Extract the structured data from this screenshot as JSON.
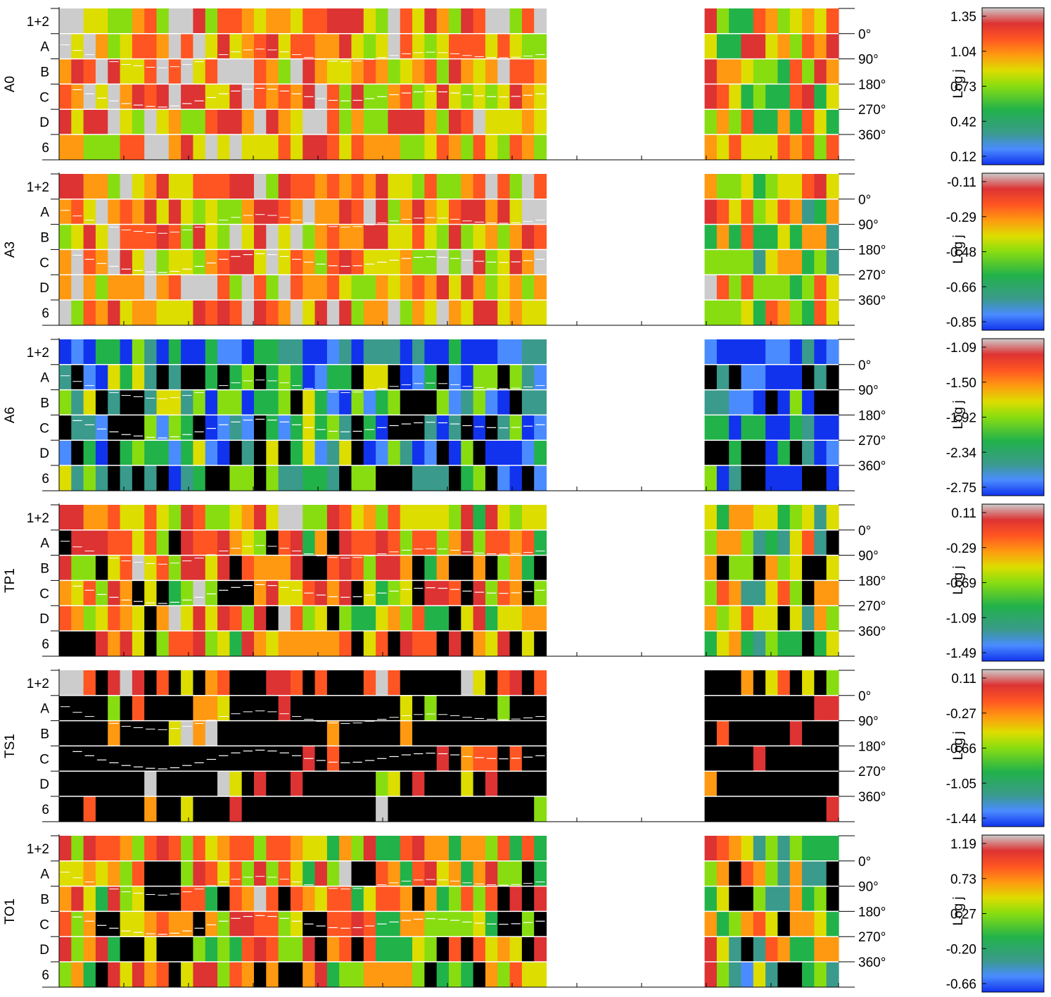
{
  "chart_data": {
    "type": "heatmap",
    "row_labels": [
      "1+2",
      "A",
      "B",
      "C",
      "D",
      "6"
    ],
    "angle_labels": [
      "0°",
      "90°",
      "180°",
      "270°",
      "360°"
    ],
    "colorbar_label": "Log j",
    "missing_color": "#000000",
    "gap_columns": [
      40,
      53
    ],
    "n_columns": 64,
    "colorscale": [
      "#1133ee",
      "#4a8cff",
      "#3a9a8c",
      "#22b24a",
      "#88dd11",
      "#dddd00",
      "#ff9911",
      "#ff5522",
      "#dd3333",
      "#cccccc"
    ],
    "panels": [
      {
        "name": "A0",
        "colorbar_ticks": [
          "1.35",
          "1.04",
          "0.73",
          "0.42",
          "0.12"
        ],
        "range": [
          0.12,
          1.35
        ],
        "level": 0.68,
        "missing": 0.0,
        "pitch_angle_curve": [
          180,
          200,
          215,
          230,
          240,
          250,
          255,
          260,
          262,
          258,
          250,
          240,
          228,
          215,
          205,
          198,
          195,
          198,
          205,
          215,
          225,
          232,
          238,
          240,
          238,
          232,
          225,
          218,
          212,
          208,
          206,
          208,
          212,
          218,
          222,
          225,
          226,
          224,
          220,
          215
        ]
      },
      {
        "name": "A3",
        "colorbar_ticks": [
          "-0.11",
          "-0.29",
          "-0.48",
          "-0.66",
          "-0.85"
        ],
        "range": [
          -0.85,
          -0.11
        ],
        "level": 0.66,
        "missing": 0.0,
        "pitch_angle_curve": [
          180,
          200,
          215,
          230,
          240,
          250,
          255,
          260,
          262,
          258,
          250,
          240,
          228,
          215,
          205,
          198,
          195,
          198,
          205,
          215,
          225,
          232,
          238,
          240,
          238,
          232,
          225,
          218,
          212,
          208,
          206,
          208,
          212,
          218,
          222,
          225,
          226,
          224,
          220,
          215
        ]
      },
      {
        "name": "A6",
        "colorbar_ticks": [
          "-1.09",
          "-1.50",
          "-1.92",
          "-2.34",
          "-2.75"
        ],
        "range": [
          -2.75,
          -1.09
        ],
        "level": 0.25,
        "missing": 0.3,
        "pitch_angle_curve": [
          180,
          200,
          215,
          230,
          240,
          250,
          255,
          260,
          262,
          258,
          250,
          240,
          228,
          215,
          205,
          198,
          195,
          198,
          205,
          215,
          225,
          232,
          238,
          240,
          238,
          232,
          225,
          218,
          212,
          208,
          206,
          208,
          212,
          218,
          222,
          225,
          226,
          224,
          220,
          215
        ]
      },
      {
        "name": "TP1",
        "colorbar_ticks": [
          "0.11",
          "-0.29",
          "-0.69",
          "-1.09",
          "-1.49"
        ],
        "range": [
          -1.49,
          0.11
        ],
        "level": 0.6,
        "missing": 0.15,
        "pitch_angle_curve": [
          180,
          200,
          215,
          230,
          240,
          250,
          255,
          260,
          262,
          258,
          250,
          240,
          228,
          215,
          205,
          198,
          195,
          198,
          205,
          215,
          225,
          232,
          238,
          240,
          238,
          232,
          225,
          218,
          212,
          208,
          206,
          208,
          212,
          218,
          222,
          225,
          226,
          224,
          220,
          215
        ]
      },
      {
        "name": "TS1",
        "colorbar_ticks": [
          "0.11",
          "-0.27",
          "-0.66",
          "-1.05",
          "-1.44"
        ],
        "range": [
          -1.44,
          0.11
        ],
        "level": 0.72,
        "missing": 0.62,
        "pitch_angle_curve": [
          180,
          200,
          215,
          230,
          240,
          250,
          255,
          260,
          262,
          258,
          250,
          240,
          228,
          215,
          205,
          198,
          195,
          198,
          205,
          215,
          225,
          232,
          238,
          240,
          238,
          232,
          225,
          218,
          212,
          208,
          206,
          208,
          212,
          218,
          222,
          225,
          226,
          224,
          220,
          215
        ]
      },
      {
        "name": "TO1",
        "colorbar_ticks": [
          "1.19",
          "0.73",
          "0.27",
          "-0.20",
          "-0.66"
        ],
        "range": [
          -0.66,
          1.19
        ],
        "level": 0.58,
        "missing": 0.2,
        "pitch_angle_curve": [
          180,
          200,
          215,
          230,
          240,
          250,
          255,
          260,
          262,
          258,
          250,
          240,
          228,
          215,
          205,
          198,
          195,
          198,
          205,
          215,
          225,
          232,
          238,
          240,
          238,
          232,
          225,
          218,
          212,
          208,
          206,
          208,
          212,
          218,
          222,
          225,
          226,
          224,
          220,
          215
        ]
      }
    ]
  }
}
